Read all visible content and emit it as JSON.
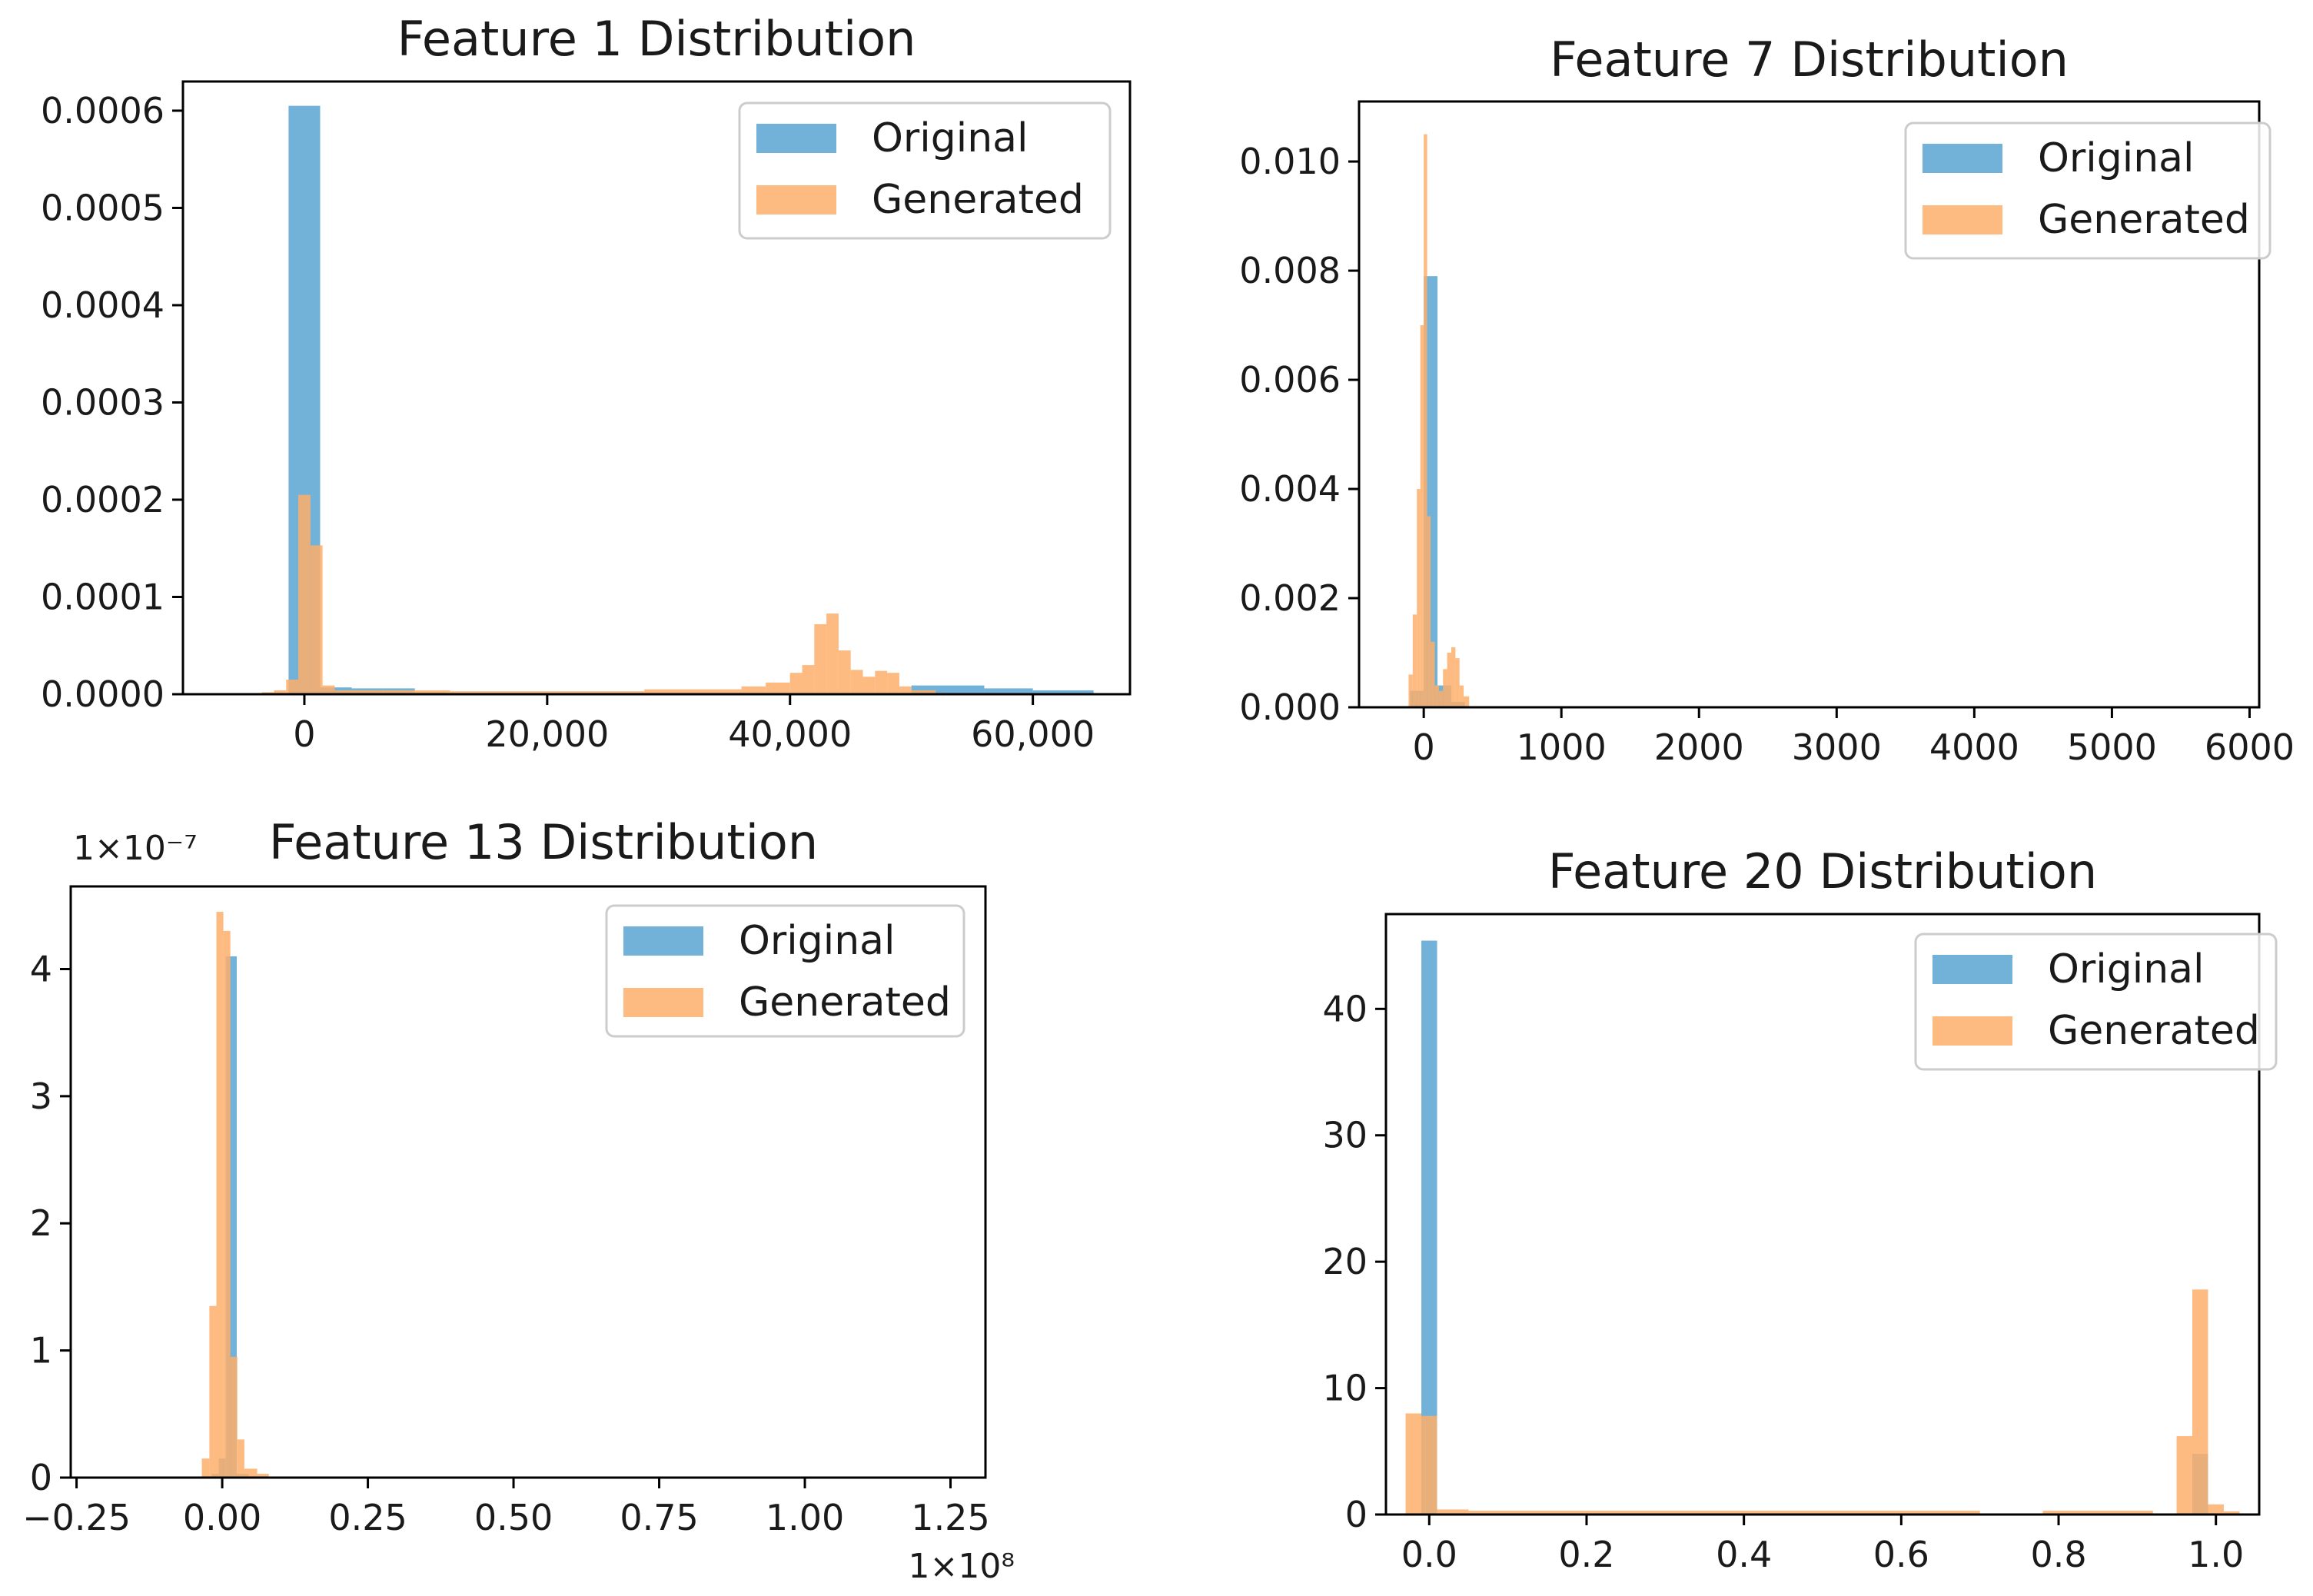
{
  "figure": {
    "panels_count": 4
  },
  "chart_data": [
    {
      "type": "histogram",
      "title": "Feature 1 Distribution",
      "xlim": [
        -10000,
        68000
      ],
      "ylim": [
        0,
        0.00063
      ],
      "xticks": [
        0,
        20000,
        40000,
        60000
      ],
      "xtick_labels": [
        "0",
        "20,000",
        "40,000",
        "60,000"
      ],
      "yticks": [
        0,
        0.0001,
        0.0002,
        0.0003,
        0.0004,
        0.0005,
        0.0006
      ],
      "ytick_labels": [
        "0.0000",
        "0.0001",
        "0.0002",
        "0.0003",
        "0.0004",
        "0.0005",
        "0.0006"
      ],
      "y_multiplier": "",
      "x_multiplier": "",
      "legend": {
        "position": "upper right",
        "entries": [
          "Original",
          "Generated"
        ]
      },
      "series": [
        {
          "name": "Original",
          "color": "#6BAED6",
          "bins": [
            [
              -6700,
              -2600,
              5e-07
            ],
            [
              -1300,
              1300,
              0.000605
            ],
            [
              1300,
              3900,
              7e-06
            ],
            [
              3900,
              6500,
              6e-06
            ],
            [
              6500,
              9100,
              6e-06
            ],
            [
              9100,
              11700,
              2e-06
            ],
            [
              11700,
              35000,
              1.5e-06
            ],
            [
              35000,
              50000,
              1.5e-06
            ],
            [
              50000,
              56000,
              9e-06
            ],
            [
              56000,
              60000,
              6e-06
            ],
            [
              60000,
              65000,
              4e-06
            ]
          ]
        },
        {
          "name": "Generated",
          "color": "#FDAE6B",
          "bins": [
            [
              -3500,
              -2500,
              2e-06
            ],
            [
              -2500,
              -1500,
              4e-06
            ],
            [
              -1500,
              -500,
              1.5e-05
            ],
            [
              -500,
              500,
              0.000205
            ],
            [
              500,
              1500,
              0.000153
            ],
            [
              1500,
              2500,
              9e-06
            ],
            [
              2500,
              6000,
              4e-06
            ],
            [
              6000,
              12000,
              4e-06
            ],
            [
              12000,
              28000,
              3e-06
            ],
            [
              28000,
              36000,
              5e-06
            ],
            [
              36000,
              38000,
              8e-06
            ],
            [
              38000,
              40000,
              1.2e-05
            ],
            [
              40000,
              41000,
              2.2e-05
            ],
            [
              41000,
              42000,
              3e-05
            ],
            [
              42000,
              43000,
              7.2e-05
            ],
            [
              43000,
              44000,
              8.3e-05
            ],
            [
              44000,
              45000,
              4.5e-05
            ],
            [
              45000,
              46000,
              2.5e-05
            ],
            [
              46000,
              47000,
              1.8e-05
            ],
            [
              47000,
              48000,
              2.4e-05
            ],
            [
              48000,
              49000,
              2.2e-05
            ],
            [
              49000,
              50000,
              8e-06
            ],
            [
              50000,
              52000,
              4e-06
            ]
          ]
        }
      ]
    },
    {
      "type": "histogram",
      "title": "Feature 7 Distribution",
      "xlim": [
        -470,
        6070
      ],
      "ylim": [
        0,
        0.0111
      ],
      "xticks": [
        0,
        1000,
        2000,
        3000,
        4000,
        5000,
        6000
      ],
      "xtick_labels": [
        "0",
        "1000",
        "2000",
        "3000",
        "4000",
        "5000",
        "6000"
      ],
      "yticks": [
        0,
        0.002,
        0.004,
        0.006,
        0.008,
        0.01
      ],
      "ytick_labels": [
        "0.000",
        "0.002",
        "0.004",
        "0.006",
        "0.008",
        "0.010"
      ],
      "y_multiplier": "",
      "x_multiplier": "",
      "legend": {
        "position": "upper right",
        "entries": [
          "Original",
          "Generated"
        ]
      },
      "series": [
        {
          "name": "Original",
          "color": "#6BAED6",
          "bins": [
            [
              -100,
              0,
              0.0003
            ],
            [
              0,
              100,
              0.0079
            ],
            [
              100,
              200,
              0.0004
            ],
            [
              200,
              300,
              0.0001
            ]
          ]
        },
        {
          "name": "Generated",
          "color": "#FDAE6B",
          "bins": [
            [
              -110,
              -80,
              0.0006
            ],
            [
              -80,
              -50,
              0.0017
            ],
            [
              -50,
              -25,
              0.004
            ],
            [
              -25,
              0,
              0.007
            ],
            [
              0,
              25,
              0.0105
            ],
            [
              25,
              50,
              0.0035
            ],
            [
              50,
              80,
              0.0012
            ],
            [
              80,
              110,
              0.0004
            ],
            [
              110,
              140,
              0.0003
            ],
            [
              140,
              170,
              0.0007
            ],
            [
              170,
              200,
              0.001
            ],
            [
              200,
              230,
              0.0011
            ],
            [
              230,
              260,
              0.0009
            ],
            [
              260,
              290,
              0.0004
            ],
            [
              290,
              330,
              0.0002
            ]
          ]
        }
      ]
    },
    {
      "type": "histogram",
      "title": "Feature 13 Distribution",
      "xlim": [
        -0.26,
        1.31
      ],
      "ylim": [
        0,
        4.65
      ],
      "xticks": [
        -0.25,
        0,
        0.25,
        0.5,
        0.75,
        1.0,
        1.25
      ],
      "xtick_labels": [
        "−0.25",
        "0.00",
        "0.25",
        "0.50",
        "0.75",
        "1.00",
        "1.25"
      ],
      "yticks": [
        0,
        1,
        2,
        3,
        4
      ],
      "ytick_labels": [
        "0",
        "1",
        "2",
        "3",
        "4"
      ],
      "y_multiplier": "1×10⁻⁷",
      "x_multiplier": "1×10⁸",
      "legend": {
        "position": "upper right",
        "entries": [
          "Original",
          "Generated"
        ]
      },
      "series": [
        {
          "name": "Original",
          "color": "#6BAED6",
          "bins": [
            [
              -0.018,
              -0.006,
              0.03
            ],
            [
              -0.006,
              0.006,
              0.15
            ],
            [
              0.006,
              0.025,
              4.1
            ],
            [
              0.025,
              0.045,
              0.03
            ]
          ]
        },
        {
          "name": "Generated",
          "color": "#FDAE6B",
          "bins": [
            [
              -0.035,
              -0.022,
              0.15
            ],
            [
              -0.022,
              -0.01,
              1.35
            ],
            [
              -0.01,
              0.002,
              4.45
            ],
            [
              0.002,
              0.014,
              4.3
            ],
            [
              0.014,
              0.026,
              0.95
            ],
            [
              0.026,
              0.038,
              0.3
            ],
            [
              0.038,
              0.06,
              0.07
            ],
            [
              0.06,
              0.08,
              0.03
            ]
          ]
        }
      ]
    },
    {
      "type": "histogram",
      "title": "Feature 20 Distribution",
      "xlim": [
        -0.055,
        1.055
      ],
      "ylim": [
        0,
        47.5
      ],
      "xticks": [
        0,
        0.2,
        0.4,
        0.6,
        0.8,
        1.0
      ],
      "xtick_labels": [
        "0.0",
        "0.2",
        "0.4",
        "0.6",
        "0.8",
        "1.0"
      ],
      "yticks": [
        0,
        10,
        20,
        30,
        40
      ],
      "ytick_labels": [
        "0",
        "10",
        "20",
        "30",
        "40"
      ],
      "y_multiplier": "",
      "x_multiplier": "",
      "legend": {
        "position": "upper right",
        "entries": [
          "Original",
          "Generated"
        ]
      },
      "series": [
        {
          "name": "Original",
          "color": "#6BAED6",
          "bins": [
            [
              -0.01,
              0.01,
              45.4
            ],
            [
              0.97,
              0.99,
              4.8
            ]
          ]
        },
        {
          "name": "Generated",
          "color": "#FDAE6B",
          "bins": [
            [
              -0.03,
              -0.01,
              8.0
            ],
            [
              -0.01,
              0.01,
              7.8
            ],
            [
              0.01,
              0.05,
              0.4
            ],
            [
              0.05,
              0.7,
              0.3
            ],
            [
              0.78,
              0.92,
              0.3
            ],
            [
              0.95,
              0.97,
              6.2
            ],
            [
              0.97,
              0.99,
              17.8
            ],
            [
              0.99,
              1.01,
              0.8
            ],
            [
              1.01,
              1.03,
              0.25
            ]
          ]
        }
      ]
    }
  ]
}
